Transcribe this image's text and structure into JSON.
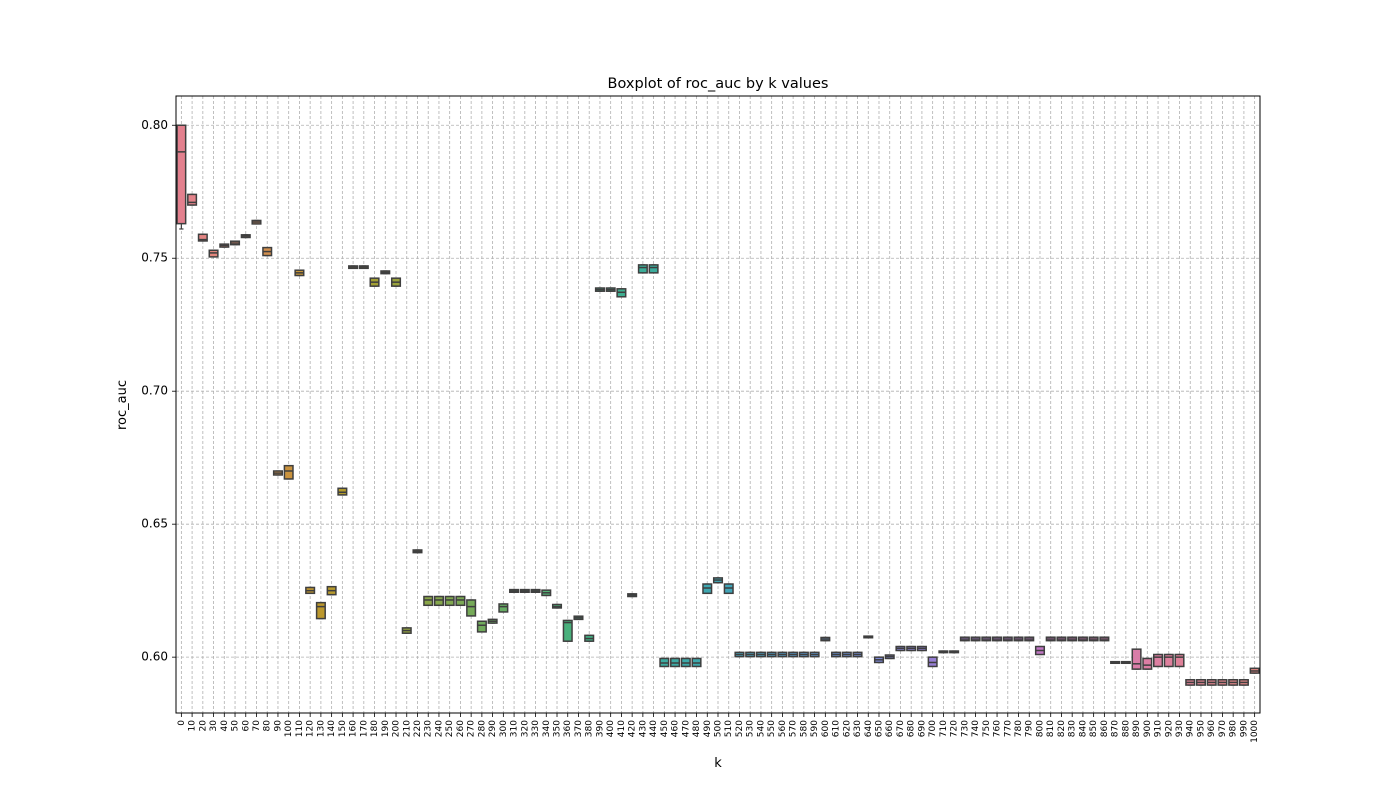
{
  "chart_data": {
    "type": "boxplot",
    "title": "Boxplot of roc_auc by k values",
    "xlabel": "k",
    "ylabel": "roc_auc",
    "ylim": [
      0.579,
      0.811
    ],
    "yticks": [
      0.6,
      0.65,
      0.7,
      0.75,
      0.8
    ],
    "ytick_labels": [
      "0.60",
      "0.65",
      "0.70",
      "0.75",
      "0.80"
    ],
    "grid": true,
    "categories": [
      "0",
      "10",
      "20",
      "30",
      "40",
      "50",
      "60",
      "70",
      "80",
      "90",
      "100",
      "110",
      "120",
      "130",
      "140",
      "150",
      "160",
      "170",
      "180",
      "190",
      "200",
      "210",
      "220",
      "230",
      "240",
      "250",
      "260",
      "270",
      "280",
      "290",
      "300",
      "310",
      "320",
      "330",
      "340",
      "350",
      "360",
      "370",
      "380",
      "390",
      "400",
      "410",
      "420",
      "430",
      "440",
      "450",
      "460",
      "470",
      "480",
      "490",
      "500",
      "510",
      "520",
      "530",
      "540",
      "550",
      "560",
      "570",
      "580",
      "590",
      "600",
      "610",
      "620",
      "630",
      "640",
      "650",
      "660",
      "670",
      "680",
      "690",
      "700",
      "710",
      "720",
      "730",
      "740",
      "750",
      "760",
      "770",
      "780",
      "790",
      "800",
      "810",
      "820",
      "830",
      "840",
      "850",
      "860",
      "870",
      "880",
      "890",
      "900",
      "910",
      "920",
      "930",
      "940",
      "950",
      "960",
      "970",
      "980",
      "990",
      "1000"
    ],
    "boxes": [
      {
        "q1": 0.763,
        "med": 0.79,
        "q3": 0.8,
        "lo": 0.761,
        "hi": 0.8,
        "color": "#e3808e"
      },
      {
        "q1": 0.77,
        "med": 0.771,
        "q3": 0.774,
        "lo": 0.77,
        "hi": 0.774,
        "color": "#e3838a"
      },
      {
        "q1": 0.7565,
        "med": 0.757,
        "q3": 0.759,
        "lo": 0.7565,
        "hi": 0.759,
        "color": "#e38583"
      },
      {
        "q1": 0.7505,
        "med": 0.752,
        "q3": 0.753,
        "lo": 0.7505,
        "hi": 0.753,
        "color": "#e2867c"
      },
      {
        "q1": 0.7542,
        "med": 0.7548,
        "q3": 0.7553,
        "lo": 0.7542,
        "hi": 0.7553,
        "color": "#e08874"
      },
      {
        "q1": 0.7551,
        "med": 0.7557,
        "q3": 0.7564,
        "lo": 0.7551,
        "hi": 0.7564,
        "color": "#dd896b"
      },
      {
        "q1": 0.7578,
        "med": 0.7583,
        "q3": 0.7588,
        "lo": 0.7578,
        "hi": 0.7588,
        "color": "#da8b62"
      },
      {
        "q1": 0.7629,
        "med": 0.7636,
        "q3": 0.7642,
        "lo": 0.7629,
        "hi": 0.7642,
        "color": "#d68d58"
      },
      {
        "q1": 0.751,
        "med": 0.7525,
        "q3": 0.754,
        "lo": 0.751,
        "hi": 0.754,
        "color": "#d28f4e"
      },
      {
        "q1": 0.6685,
        "med": 0.6692,
        "q3": 0.67,
        "lo": 0.6685,
        "hi": 0.67,
        "color": "#ce9146"
      },
      {
        "q1": 0.667,
        "med": 0.67,
        "q3": 0.672,
        "lo": 0.667,
        "hi": 0.672,
        "color": "#ca933e"
      },
      {
        "q1": 0.7435,
        "med": 0.7445,
        "q3": 0.7455,
        "lo": 0.7435,
        "hi": 0.7455,
        "color": "#c69537"
      },
      {
        "q1": 0.624,
        "med": 0.625,
        "q3": 0.6262,
        "lo": 0.624,
        "hi": 0.6262,
        "color": "#c19731"
      },
      {
        "q1": 0.6145,
        "med": 0.619,
        "q3": 0.6205,
        "lo": 0.6145,
        "hi": 0.6205,
        "color": "#bc982d"
      },
      {
        "q1": 0.6235,
        "med": 0.625,
        "q3": 0.6265,
        "lo": 0.6235,
        "hi": 0.6265,
        "color": "#b79a2c"
      },
      {
        "q1": 0.661,
        "med": 0.662,
        "q3": 0.6635,
        "lo": 0.661,
        "hi": 0.6635,
        "color": "#b29b2c"
      },
      {
        "q1": 0.7462,
        "med": 0.7467,
        "q3": 0.7471,
        "lo": 0.7462,
        "hi": 0.7471,
        "color": "#ad9d2e"
      },
      {
        "q1": 0.7462,
        "med": 0.7467,
        "q3": 0.7471,
        "lo": 0.7462,
        "hi": 0.7471,
        "color": "#a89e31"
      },
      {
        "q1": 0.7395,
        "med": 0.741,
        "q3": 0.7425,
        "lo": 0.7395,
        "hi": 0.7425,
        "color": "#a3a034"
      },
      {
        "q1": 0.7442,
        "med": 0.7447,
        "q3": 0.7452,
        "lo": 0.7442,
        "hi": 0.7452,
        "color": "#9ea138"
      },
      {
        "q1": 0.7395,
        "med": 0.741,
        "q3": 0.7425,
        "lo": 0.7395,
        "hi": 0.7425,
        "color": "#99a23c"
      },
      {
        "q1": 0.609,
        "med": 0.61,
        "q3": 0.611,
        "lo": 0.609,
        "hi": 0.611,
        "color": "#94a340"
      },
      {
        "q1": 0.6393,
        "med": 0.6398,
        "q3": 0.6403,
        "lo": 0.6393,
        "hi": 0.6403,
        "color": "#8fa544"
      },
      {
        "q1": 0.6195,
        "med": 0.6215,
        "q3": 0.6228,
        "lo": 0.6195,
        "hi": 0.6228,
        "color": "#8aa648"
      },
      {
        "q1": 0.6195,
        "med": 0.6215,
        "q3": 0.6228,
        "lo": 0.6195,
        "hi": 0.6228,
        "color": "#85a74c"
      },
      {
        "q1": 0.6195,
        "med": 0.6215,
        "q3": 0.6228,
        "lo": 0.6195,
        "hi": 0.6228,
        "color": "#80a850"
      },
      {
        "q1": 0.6195,
        "med": 0.6215,
        "q3": 0.6228,
        "lo": 0.6195,
        "hi": 0.6228,
        "color": "#7ba954"
      },
      {
        "q1": 0.6155,
        "med": 0.619,
        "q3": 0.6215,
        "lo": 0.6155,
        "hi": 0.6215,
        "color": "#76aa58"
      },
      {
        "q1": 0.6095,
        "med": 0.612,
        "q3": 0.6135,
        "lo": 0.6095,
        "hi": 0.6135,
        "color": "#71ab5c"
      },
      {
        "q1": 0.6128,
        "med": 0.6135,
        "q3": 0.6142,
        "lo": 0.6128,
        "hi": 0.6142,
        "color": "#6cac60"
      },
      {
        "q1": 0.617,
        "med": 0.619,
        "q3": 0.62,
        "lo": 0.617,
        "hi": 0.62,
        "color": "#67ad64"
      },
      {
        "q1": 0.6244,
        "med": 0.6249,
        "q3": 0.6254,
        "lo": 0.6244,
        "hi": 0.6254,
        "color": "#62ae68"
      },
      {
        "q1": 0.6244,
        "med": 0.6249,
        "q3": 0.6254,
        "lo": 0.6244,
        "hi": 0.6254,
        "color": "#5daf6c"
      },
      {
        "q1": 0.6244,
        "med": 0.6249,
        "q3": 0.6254,
        "lo": 0.6244,
        "hi": 0.6254,
        "color": "#58b070"
      },
      {
        "q1": 0.6232,
        "med": 0.6242,
        "q3": 0.6252,
        "lo": 0.6232,
        "hi": 0.6252,
        "color": "#53b074"
      },
      {
        "q1": 0.6185,
        "med": 0.619,
        "q3": 0.6198,
        "lo": 0.6185,
        "hi": 0.6198,
        "color": "#4eb078"
      },
      {
        "q1": 0.606,
        "med": 0.613,
        "q3": 0.6138,
        "lo": 0.606,
        "hi": 0.6138,
        "color": "#49b07c"
      },
      {
        "q1": 0.6142,
        "med": 0.6148,
        "q3": 0.6154,
        "lo": 0.6142,
        "hi": 0.6154,
        "color": "#45b080"
      },
      {
        "q1": 0.606,
        "med": 0.607,
        "q3": 0.6082,
        "lo": 0.606,
        "hi": 0.6082,
        "color": "#42b084"
      },
      {
        "q1": 0.7376,
        "med": 0.7382,
        "q3": 0.7388,
        "lo": 0.7376,
        "hi": 0.7388,
        "color": "#40af88"
      },
      {
        "q1": 0.7376,
        "med": 0.7382,
        "q3": 0.7388,
        "lo": 0.7376,
        "hi": 0.7388,
        "color": "#3faf8c"
      },
      {
        "q1": 0.7355,
        "med": 0.7372,
        "q3": 0.7385,
        "lo": 0.7355,
        "hi": 0.7385,
        "color": "#3eae90"
      },
      {
        "q1": 0.6228,
        "med": 0.6233,
        "q3": 0.6238,
        "lo": 0.6228,
        "hi": 0.6238,
        "color": "#3dae94"
      },
      {
        "q1": 0.7445,
        "med": 0.7465,
        "q3": 0.7475,
        "lo": 0.7445,
        "hi": 0.7475,
        "color": "#3cad98"
      },
      {
        "q1": 0.7445,
        "med": 0.7465,
        "q3": 0.7475,
        "lo": 0.7445,
        "hi": 0.7475,
        "color": "#3cac9c"
      },
      {
        "q1": 0.5965,
        "med": 0.5978,
        "q3": 0.5995,
        "lo": 0.5965,
        "hi": 0.5995,
        "color": "#3caba0"
      },
      {
        "q1": 0.5965,
        "med": 0.5978,
        "q3": 0.5995,
        "lo": 0.5965,
        "hi": 0.5995,
        "color": "#3caaa4"
      },
      {
        "q1": 0.5965,
        "med": 0.5978,
        "q3": 0.5995,
        "lo": 0.5965,
        "hi": 0.5995,
        "color": "#3ca9a8"
      },
      {
        "q1": 0.5965,
        "med": 0.5978,
        "q3": 0.5995,
        "lo": 0.5965,
        "hi": 0.5995,
        "color": "#3da8ac"
      },
      {
        "q1": 0.624,
        "med": 0.626,
        "q3": 0.6275,
        "lo": 0.624,
        "hi": 0.6275,
        "color": "#3ea7b0"
      },
      {
        "q1": 0.628,
        "med": 0.629,
        "q3": 0.6298,
        "lo": 0.628,
        "hi": 0.6298,
        "color": "#40a6b4"
      },
      {
        "q1": 0.624,
        "med": 0.626,
        "q3": 0.6275,
        "lo": 0.624,
        "hi": 0.6275,
        "color": "#42a5b8"
      },
      {
        "q1": 0.6002,
        "med": 0.601,
        "q3": 0.6018,
        "lo": 0.6002,
        "hi": 0.6018,
        "color": "#45a3bb"
      },
      {
        "q1": 0.6002,
        "med": 0.601,
        "q3": 0.6018,
        "lo": 0.6002,
        "hi": 0.6018,
        "color": "#48a2be"
      },
      {
        "q1": 0.6002,
        "med": 0.601,
        "q3": 0.6018,
        "lo": 0.6002,
        "hi": 0.6018,
        "color": "#4ba0c1"
      },
      {
        "q1": 0.6002,
        "med": 0.601,
        "q3": 0.6018,
        "lo": 0.6002,
        "hi": 0.6018,
        "color": "#4f9ec4"
      },
      {
        "q1": 0.6002,
        "med": 0.601,
        "q3": 0.6018,
        "lo": 0.6002,
        "hi": 0.6018,
        "color": "#539cc7"
      },
      {
        "q1": 0.6002,
        "med": 0.601,
        "q3": 0.6018,
        "lo": 0.6002,
        "hi": 0.6018,
        "color": "#579aca"
      },
      {
        "q1": 0.6002,
        "med": 0.601,
        "q3": 0.6018,
        "lo": 0.6002,
        "hi": 0.6018,
        "color": "#5b98cc"
      },
      {
        "q1": 0.6002,
        "med": 0.601,
        "q3": 0.6018,
        "lo": 0.6002,
        "hi": 0.6018,
        "color": "#6096ce"
      },
      {
        "q1": 0.6062,
        "med": 0.6068,
        "q3": 0.6074,
        "lo": 0.6062,
        "hi": 0.6074,
        "color": "#6594d0"
      },
      {
        "q1": 0.6002,
        "med": 0.601,
        "q3": 0.6018,
        "lo": 0.6002,
        "hi": 0.6018,
        "color": "#6a92d2"
      },
      {
        "q1": 0.6002,
        "med": 0.601,
        "q3": 0.6018,
        "lo": 0.6002,
        "hi": 0.6018,
        "color": "#6f90d3"
      },
      {
        "q1": 0.6002,
        "med": 0.601,
        "q3": 0.6018,
        "lo": 0.6002,
        "hi": 0.6018,
        "color": "#748ed4"
      },
      {
        "q1": 0.6073,
        "med": 0.6076,
        "q3": 0.6079,
        "lo": 0.6073,
        "hi": 0.6079,
        "color": "#798bd5"
      },
      {
        "q1": 0.598,
        "med": 0.599,
        "q3": 0.6,
        "lo": 0.598,
        "hi": 0.6,
        "color": "#7e89d6"
      },
      {
        "q1": 0.5995,
        "med": 0.6002,
        "q3": 0.6008,
        "lo": 0.5995,
        "hi": 0.6008,
        "color": "#8387d6"
      },
      {
        "q1": 0.6025,
        "med": 0.6033,
        "q3": 0.604,
        "lo": 0.6025,
        "hi": 0.604,
        "color": "#8885d6"
      },
      {
        "q1": 0.6025,
        "med": 0.6033,
        "q3": 0.604,
        "lo": 0.6025,
        "hi": 0.604,
        "color": "#8d83d6"
      },
      {
        "q1": 0.6025,
        "med": 0.6033,
        "q3": 0.604,
        "lo": 0.6025,
        "hi": 0.604,
        "color": "#9281d5"
      },
      {
        "q1": 0.5965,
        "med": 0.598,
        "q3": 0.6,
        "lo": 0.5965,
        "hi": 0.6,
        "color": "#977fd4"
      },
      {
        "q1": 0.6017,
        "med": 0.602,
        "q3": 0.6023,
        "lo": 0.6017,
        "hi": 0.6023,
        "color": "#9c7ed3"
      },
      {
        "q1": 0.6017,
        "med": 0.602,
        "q3": 0.6023,
        "lo": 0.6017,
        "hi": 0.6023,
        "color": "#a17cd2"
      },
      {
        "q1": 0.6062,
        "med": 0.6068,
        "q3": 0.6075,
        "lo": 0.6062,
        "hi": 0.6075,
        "color": "#a57bd1"
      },
      {
        "q1": 0.6062,
        "med": 0.6068,
        "q3": 0.6075,
        "lo": 0.6062,
        "hi": 0.6075,
        "color": "#a97ad0"
      },
      {
        "q1": 0.6062,
        "med": 0.6068,
        "q3": 0.6075,
        "lo": 0.6062,
        "hi": 0.6075,
        "color": "#ad79ce"
      },
      {
        "q1": 0.6062,
        "med": 0.6068,
        "q3": 0.6075,
        "lo": 0.6062,
        "hi": 0.6075,
        "color": "#b178cc"
      },
      {
        "q1": 0.6062,
        "med": 0.6068,
        "q3": 0.6075,
        "lo": 0.6062,
        "hi": 0.6075,
        "color": "#b577ca"
      },
      {
        "q1": 0.6062,
        "med": 0.6068,
        "q3": 0.6075,
        "lo": 0.6062,
        "hi": 0.6075,
        "color": "#b976c8"
      },
      {
        "q1": 0.6062,
        "med": 0.6068,
        "q3": 0.6075,
        "lo": 0.6062,
        "hi": 0.6075,
        "color": "#bd76c6"
      },
      {
        "q1": 0.601,
        "med": 0.6025,
        "q3": 0.604,
        "lo": 0.601,
        "hi": 0.604,
        "color": "#c176c4"
      },
      {
        "q1": 0.6062,
        "med": 0.6068,
        "q3": 0.6075,
        "lo": 0.6062,
        "hi": 0.6075,
        "color": "#c576c1"
      },
      {
        "q1": 0.6062,
        "med": 0.6068,
        "q3": 0.6075,
        "lo": 0.6062,
        "hi": 0.6075,
        "color": "#c876be"
      },
      {
        "q1": 0.6062,
        "med": 0.6068,
        "q3": 0.6075,
        "lo": 0.6062,
        "hi": 0.6075,
        "color": "#cb77bb"
      },
      {
        "q1": 0.6062,
        "med": 0.6068,
        "q3": 0.6075,
        "lo": 0.6062,
        "hi": 0.6075,
        "color": "#ce78b8"
      },
      {
        "q1": 0.6062,
        "med": 0.6068,
        "q3": 0.6075,
        "lo": 0.6062,
        "hi": 0.6075,
        "color": "#d179b5"
      },
      {
        "q1": 0.6062,
        "med": 0.6068,
        "q3": 0.6075,
        "lo": 0.6062,
        "hi": 0.6075,
        "color": "#d37ab2"
      },
      {
        "q1": 0.5977,
        "med": 0.598,
        "q3": 0.5983,
        "lo": 0.5977,
        "hi": 0.5983,
        "color": "#d57baf"
      },
      {
        "q1": 0.5977,
        "med": 0.598,
        "q3": 0.5983,
        "lo": 0.5977,
        "hi": 0.5983,
        "color": "#d77cab"
      },
      {
        "q1": 0.5955,
        "med": 0.5975,
        "q3": 0.603,
        "lo": 0.5955,
        "hi": 0.603,
        "color": "#d97da8"
      },
      {
        "q1": 0.5955,
        "med": 0.597,
        "q3": 0.5995,
        "lo": 0.5955,
        "hi": 0.5995,
        "color": "#db7ea4"
      },
      {
        "q1": 0.5965,
        "med": 0.6,
        "q3": 0.601,
        "lo": 0.5965,
        "hi": 0.601,
        "color": "#dc7fa1"
      },
      {
        "q1": 0.5965,
        "med": 0.6,
        "q3": 0.601,
        "lo": 0.5965,
        "hi": 0.601,
        "color": "#de809d"
      },
      {
        "q1": 0.5965,
        "med": 0.6,
        "q3": 0.601,
        "lo": 0.5965,
        "hi": 0.601,
        "color": "#df8199"
      },
      {
        "q1": 0.5895,
        "med": 0.5905,
        "q3": 0.5915,
        "lo": 0.5895,
        "hi": 0.5915,
        "color": "#e08295"
      },
      {
        "q1": 0.5895,
        "med": 0.5905,
        "q3": 0.5915,
        "lo": 0.5895,
        "hi": 0.5915,
        "color": "#e08391"
      },
      {
        "q1": 0.5895,
        "med": 0.5905,
        "q3": 0.5915,
        "lo": 0.5895,
        "hi": 0.5915,
        "color": "#e1848e"
      },
      {
        "q1": 0.5895,
        "med": 0.5905,
        "q3": 0.5915,
        "lo": 0.5895,
        "hi": 0.5915,
        "color": "#e1858b"
      },
      {
        "q1": 0.5895,
        "med": 0.5905,
        "q3": 0.5915,
        "lo": 0.5895,
        "hi": 0.5915,
        "color": "#e18688"
      },
      {
        "q1": 0.5895,
        "med": 0.5905,
        "q3": 0.5915,
        "lo": 0.5895,
        "hi": 0.5915,
        "color": "#e18785"
      },
      {
        "q1": 0.594,
        "med": 0.5948,
        "q3": 0.5958,
        "lo": 0.594,
        "hi": 0.5958,
        "color": "#e28882"
      }
    ]
  }
}
